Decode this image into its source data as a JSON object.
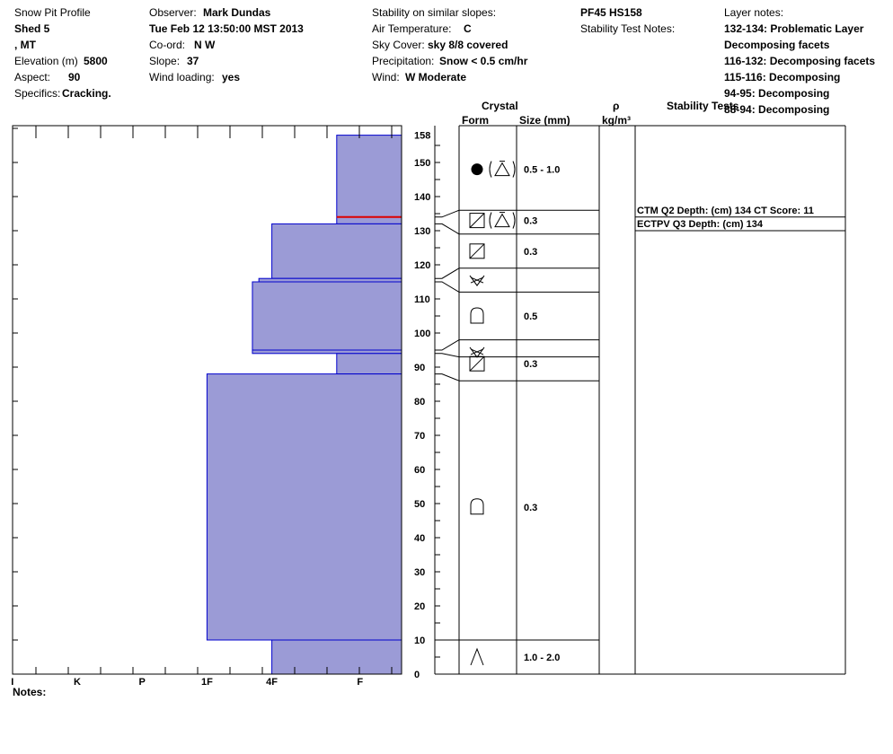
{
  "header": {
    "title": "Snow Pit Profile",
    "site": "Shed 5",
    "region": ", MT",
    "elevation_label": "Elevation (m)",
    "elevation": "5800",
    "aspect_label": "Aspect:",
    "aspect": "90",
    "specifics_label": "Specifics:",
    "specifics": "Cracking.",
    "observer_label": "Observer:",
    "observer": "Mark Dundas",
    "datetime": "Tue Feb 12 13:50:00 MST 2013",
    "coord_label": "Co-ord:",
    "coord": "N  W",
    "slope_label": "Slope:",
    "slope": "37",
    "wind_loading_label": "Wind loading:",
    "wind_loading": "yes",
    "stability_label": "Stability on similar slopes:",
    "air_temp_label": "Air Temperature:",
    "air_temp": "C",
    "sky_label": "Sky Cover:",
    "sky": "sky 8/8 covered",
    "precip_label": "Precipitation:",
    "precip": "Snow < 0.5 cm/hr",
    "wind_label": "Wind:",
    "wind": "W Moderate",
    "pf_hs": "PF45 HS158",
    "stability_test_notes_label": "Stability Test Notes:",
    "layer_notes_label": "Layer notes:",
    "layer_notes": [
      "132-134: Problematic Layer",
      "Decomposing facets",
      "116-132: Decomposing facets",
      "115-116: Decomposing",
      "94-95: Decomposing",
      "88-94: Decomposing"
    ]
  },
  "columns": {
    "crystal": "Crystal",
    "form": "Form",
    "size": "Size (mm)",
    "rho": "ρ",
    "rho_unit": "kg/m³",
    "stability_tests": "Stability Tests"
  },
  "stability_results": [
    "CTM Q2 Depth: (cm) 134 CT Score: 11",
    "ECTPV Q3 Depth: (cm) 134"
  ],
  "notes_label": "Notes:",
  "colors": {
    "fill": "#9b9bd6",
    "stroke": "#0000cc",
    "marker": "#dd0000"
  },
  "chart_data": {
    "type": "bar",
    "title": "Snow Pit Profile",
    "ylabel": "",
    "ylim": [
      0,
      160
    ],
    "yticks": [
      0,
      10,
      20,
      30,
      40,
      50,
      60,
      70,
      80,
      90,
      100,
      110,
      120,
      130,
      140,
      150,
      158
    ],
    "hardness_scale": [
      "I",
      "K",
      "P",
      "1F",
      "4F",
      "F"
    ],
    "hardness_ticks": [
      6,
      5,
      4,
      3,
      2,
      1
    ],
    "layers": [
      {
        "bottom": 132,
        "top": 158,
        "hardness": 1.0
      },
      {
        "bottom": 116,
        "top": 132,
        "hardness": 2.0
      },
      {
        "bottom": 115,
        "top": 116,
        "hardness": 2.2
      },
      {
        "bottom": 95,
        "top": 115,
        "hardness": 2.3
      },
      {
        "bottom": 94,
        "top": 95,
        "hardness": 2.3
      },
      {
        "bottom": 88,
        "top": 94,
        "hardness": 1.0
      },
      {
        "bottom": 10,
        "top": 88,
        "hardness": 3.0
      },
      {
        "bottom": 0,
        "top": 10,
        "hardness": 2.0
      }
    ],
    "weak_layer_depth": 134,
    "crystal_layers": [
      {
        "mid": 148,
        "form": "rounded+facet-rounding",
        "size": "0.5 - 1.0"
      },
      {
        "mid": 133,
        "form": "facet+facet-rounding",
        "size": "0.3"
      },
      {
        "mid": 124,
        "form": "facet",
        "size": "0.3"
      },
      {
        "mid": 115.5,
        "form": "surface-hoar",
        "size": ""
      },
      {
        "mid": 105,
        "form": "rounded",
        "size": "0.5"
      },
      {
        "mid": 94.5,
        "form": "surface-hoar",
        "size": ""
      },
      {
        "mid": 91,
        "form": "facet",
        "size": "0.3"
      },
      {
        "mid": 49,
        "form": "rounded",
        "size": "0.3"
      },
      {
        "mid": 5,
        "form": "depth-hoar",
        "size": "1.0 - 2.0"
      }
    ],
    "crystal_boundaries_right": [
      10,
      86,
      93,
      98,
      112,
      119,
      129,
      136
    ],
    "crystal_boundaries_left": [
      10,
      88,
      94,
      95,
      115,
      116,
      132,
      134
    ]
  }
}
